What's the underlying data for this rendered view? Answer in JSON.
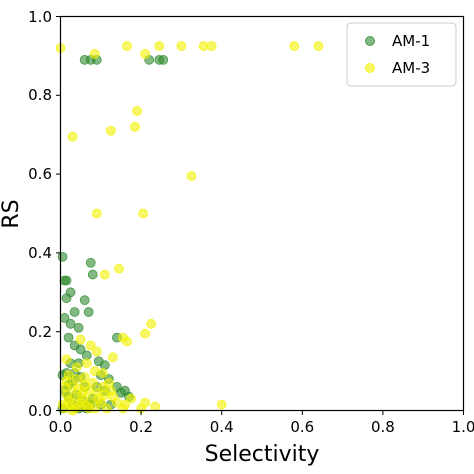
{
  "chart_data": {
    "type": "scatter",
    "title": "",
    "xlabel": "Selectivity",
    "ylabel": "RS",
    "xlim": [
      0.0,
      1.0
    ],
    "ylim": [
      0.0,
      1.0
    ],
    "xticks": [
      "0.0",
      "0.2",
      "0.4",
      "0.6",
      "0.8",
      "1.0"
    ],
    "yticks": [
      "0.0",
      "0.2",
      "0.4",
      "0.6",
      "0.8",
      "1.0"
    ],
    "grid": false,
    "legend_position": "top-right",
    "series": [
      {
        "name": "AM-1",
        "color": "#2e8b2e",
        "points": [
          [
            0.06,
            0.89
          ],
          [
            0.075,
            0.89
          ],
          [
            0.09,
            0.89
          ],
          [
            0.22,
            0.89
          ],
          [
            0.245,
            0.89
          ],
          [
            0.255,
            0.89
          ],
          [
            0.005,
            0.39
          ],
          [
            0.01,
            0.33
          ],
          [
            0.015,
            0.33
          ],
          [
            0.075,
            0.375
          ],
          [
            0.08,
            0.345
          ],
          [
            0.025,
            0.3
          ],
          [
            0.015,
            0.285
          ],
          [
            0.06,
            0.28
          ],
          [
            0.035,
            0.25
          ],
          [
            0.07,
            0.25
          ],
          [
            0.01,
            0.235
          ],
          [
            0.025,
            0.22
          ],
          [
            0.045,
            0.21
          ],
          [
            0.02,
            0.185
          ],
          [
            0.035,
            0.165
          ],
          [
            0.05,
            0.155
          ],
          [
            0.065,
            0.14
          ],
          [
            0.14,
            0.185
          ],
          [
            0.095,
            0.125
          ],
          [
            0.11,
            0.115
          ],
          [
            0.005,
            0.09
          ],
          [
            0.015,
            0.095
          ],
          [
            0.03,
            0.075
          ],
          [
            0.05,
            0.085
          ],
          [
            0.1,
            0.09
          ],
          [
            0.12,
            0.08
          ],
          [
            0.14,
            0.06
          ],
          [
            0.15,
            0.045
          ],
          [
            0.17,
            0.035
          ],
          [
            0.01,
            0.05
          ],
          [
            0.02,
            0.035
          ],
          [
            0.04,
            0.04
          ],
          [
            0.06,
            0.06
          ],
          [
            0.08,
            0.03
          ],
          [
            0.1,
            0.015
          ],
          [
            0.125,
            0.015
          ],
          [
            0.075,
            0.015
          ],
          [
            0.03,
            0.015
          ],
          [
            0.045,
            0.005
          ],
          [
            0.005,
            0.005
          ],
          [
            0.02,
            0.065
          ],
          [
            0.055,
            0.025
          ],
          [
            0.065,
            0.005
          ],
          [
            0.035,
            0.095
          ],
          [
            0.11,
            0.05
          ],
          [
            0.09,
            0.06
          ],
          [
            0.16,
            0.05
          ],
          [
            0.025,
            0.12
          ],
          [
            0.045,
            0.12
          ]
        ]
      },
      {
        "name": "AM-3",
        "color": "#f2f200",
        "points": [
          [
            0.0,
            0.92
          ],
          [
            0.085,
            0.905
          ],
          [
            0.165,
            0.925
          ],
          [
            0.21,
            0.905
          ],
          [
            0.245,
            0.925
          ],
          [
            0.3,
            0.925
          ],
          [
            0.355,
            0.925
          ],
          [
            0.375,
            0.925
          ],
          [
            0.58,
            0.925
          ],
          [
            0.64,
            0.925
          ],
          [
            0.19,
            0.76
          ],
          [
            0.185,
            0.72
          ],
          [
            0.125,
            0.71
          ],
          [
            0.03,
            0.695
          ],
          [
            0.325,
            0.595
          ],
          [
            0.09,
            0.5
          ],
          [
            0.205,
            0.5
          ],
          [
            0.145,
            0.36
          ],
          [
            0.11,
            0.345
          ],
          [
            0.225,
            0.22
          ],
          [
            0.21,
            0.195
          ],
          [
            0.155,
            0.185
          ],
          [
            0.165,
            0.175
          ],
          [
            0.05,
            0.18
          ],
          [
            0.075,
            0.165
          ],
          [
            0.09,
            0.15
          ],
          [
            0.13,
            0.135
          ],
          [
            0.015,
            0.13
          ],
          [
            0.065,
            0.12
          ],
          [
            0.04,
            0.11
          ],
          [
            0.085,
            0.1
          ],
          [
            0.105,
            0.095
          ],
          [
            0.02,
            0.09
          ],
          [
            0.06,
            0.085
          ],
          [
            0.12,
            0.07
          ],
          [
            0.01,
            0.06
          ],
          [
            0.03,
            0.06
          ],
          [
            0.045,
            0.055
          ],
          [
            0.07,
            0.05
          ],
          [
            0.09,
            0.045
          ],
          [
            0.11,
            0.04
          ],
          [
            0.13,
            0.035
          ],
          [
            0.015,
            0.04
          ],
          [
            0.035,
            0.035
          ],
          [
            0.055,
            0.03
          ],
          [
            0.075,
            0.025
          ],
          [
            0.1,
            0.02
          ],
          [
            0.14,
            0.02
          ],
          [
            0.16,
            0.015
          ],
          [
            0.005,
            0.015
          ],
          [
            0.025,
            0.015
          ],
          [
            0.045,
            0.01
          ],
          [
            0.065,
            0.01
          ],
          [
            0.085,
            0.005
          ],
          [
            0.115,
            0.005
          ],
          [
            0.155,
            0.005
          ],
          [
            0.21,
            0.02
          ],
          [
            0.235,
            0.01
          ],
          [
            0.4,
            0.015
          ],
          [
            0.2,
            0.005
          ],
          [
            0.01,
            0.005
          ],
          [
            0.03,
            0.0
          ],
          [
            0.05,
            0.02
          ],
          [
            0.06,
            0.065
          ],
          [
            0.04,
            0.08
          ],
          [
            0.02,
            0.025
          ],
          [
            0.08,
            0.07
          ],
          [
            0.095,
            0.03
          ],
          [
            0.125,
            0.05
          ],
          [
            0.175,
            0.03
          ],
          [
            0.07,
            0.005
          ],
          [
            0.035,
            0.005
          ],
          [
            0.055,
            0.045
          ],
          [
            0.015,
            0.075
          ],
          [
            0.105,
            0.06
          ]
        ]
      }
    ]
  }
}
